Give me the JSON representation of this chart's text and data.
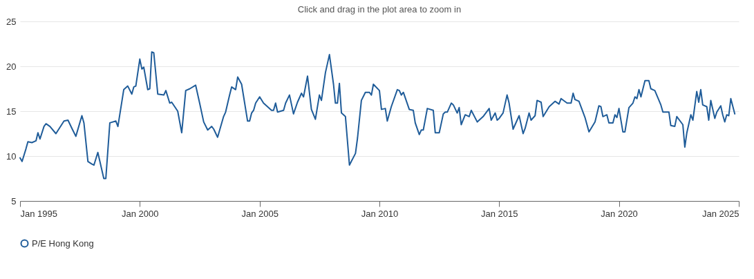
{
  "chart_data": {
    "type": "line",
    "title": "Click and drag in the plot area to zoom in",
    "x": [
      "1995-01",
      "1995-02",
      "1995-04",
      "1995-05",
      "1995-07",
      "1995-09",
      "1995-10",
      "1995-11",
      "1996-01",
      "1996-02",
      "1996-04",
      "1996-07",
      "1996-11",
      "1997-01",
      "1997-03",
      "1997-05",
      "1997-08",
      "1997-09",
      "1997-11",
      "1998-01",
      "1998-02",
      "1998-04",
      "1998-07",
      "1998-08",
      "1998-10",
      "1999-01",
      "1999-02",
      "1999-05",
      "1999-07",
      "1999-09",
      "1999-10",
      "1999-11",
      "2000-01",
      "2000-02",
      "2000-03",
      "2000-05",
      "2000-06",
      "2000-07",
      "2000-08",
      "2000-10",
      "2001-01",
      "2001-02",
      "2001-04",
      "2001-05",
      "2001-08",
      "2001-10",
      "2001-12",
      "2002-02",
      "2002-05",
      "2002-07",
      "2002-09",
      "2002-11",
      "2003-01",
      "2003-02",
      "2003-04",
      "2003-07",
      "2003-08",
      "2003-10",
      "2003-11",
      "2004-01",
      "2004-02",
      "2004-04",
      "2004-07",
      "2004-08",
      "2004-09",
      "2004-10",
      "2004-11",
      "2005-01",
      "2005-03",
      "2005-07",
      "2005-08",
      "2005-09",
      "2005-10",
      "2006-01",
      "2006-02",
      "2006-04",
      "2006-06",
      "2006-08",
      "2006-10",
      "2006-11",
      "2007-01",
      "2007-03",
      "2007-05",
      "2007-07",
      "2007-08",
      "2007-10",
      "2007-12",
      "2008-02",
      "2008-03",
      "2008-04",
      "2008-05",
      "2008-06",
      "2008-08",
      "2008-10",
      "2009-01",
      "2009-02",
      "2009-04",
      "2009-06",
      "2009-08",
      "2009-09",
      "2009-10",
      "2010-01",
      "2010-02",
      "2010-04",
      "2010-05",
      "2010-07",
      "2010-10",
      "2010-11",
      "2010-12",
      "2011-01",
      "2011-04",
      "2011-06",
      "2011-07",
      "2011-09",
      "2011-10",
      "2011-11",
      "2012-01",
      "2012-04",
      "2012-05",
      "2012-07",
      "2012-09",
      "2012-10",
      "2012-11",
      "2013-01",
      "2013-02",
      "2013-04",
      "2013-05",
      "2013-06",
      "2013-08",
      "2013-10",
      "2013-11",
      "2014-02",
      "2014-05",
      "2014-08",
      "2014-09",
      "2014-11",
      "2014-12",
      "2015-01",
      "2015-03",
      "2015-05",
      "2015-06",
      "2015-08",
      "2015-11",
      "2016-01",
      "2016-02",
      "2016-04",
      "2016-05",
      "2016-07",
      "2016-08",
      "2016-10",
      "2016-11",
      "2017-02",
      "2017-05",
      "2017-07",
      "2017-08",
      "2017-11",
      "2018-01",
      "2018-02",
      "2018-03",
      "2018-05",
      "2018-08",
      "2018-10",
      "2019-01",
      "2019-03",
      "2019-04",
      "2019-05",
      "2019-07",
      "2019-08",
      "2019-10",
      "2019-11",
      "2019-12",
      "2020-01",
      "2020-03",
      "2020-04",
      "2020-06",
      "2020-08",
      "2020-09",
      "2020-10",
      "2020-11",
      "2020-12",
      "2021-02",
      "2021-04",
      "2021-05",
      "2021-07",
      "2021-10",
      "2021-11",
      "2022-02",
      "2022-03",
      "2022-05",
      "2022-06",
      "2022-09",
      "2022-10",
      "2022-11",
      "2023-01",
      "2023-02",
      "2023-04",
      "2023-05",
      "2023-06",
      "2023-07",
      "2023-09",
      "2023-10",
      "2023-11",
      "2024-01",
      "2024-02",
      "2024-04",
      "2024-05",
      "2024-06",
      "2024-07",
      "2024-08",
      "2024-09",
      "2024-11"
    ],
    "series": [
      {
        "name": "P/E Hong Kong",
        "color": "#1f5c99",
        "values": [
          9.8,
          9.4,
          10.8,
          11.6,
          11.5,
          11.7,
          12.6,
          11.9,
          13.3,
          13.6,
          13.3,
          12.5,
          13.9,
          14.0,
          13.1,
          12.2,
          14.5,
          13.7,
          9.4,
          9.1,
          9.0,
          10.4,
          7.5,
          7.5,
          13.7,
          13.9,
          13.3,
          17.4,
          17.8,
          16.9,
          17.7,
          17.8,
          20.8,
          19.7,
          19.9,
          17.4,
          17.5,
          21.6,
          21.5,
          16.9,
          16.8,
          17.3,
          15.9,
          16.0,
          15.0,
          12.6,
          17.3,
          17.5,
          17.9,
          15.9,
          13.8,
          12.9,
          13.3,
          13.0,
          12.1,
          14.4,
          14.9,
          16.8,
          17.7,
          17.4,
          18.8,
          18.0,
          13.9,
          13.9,
          14.8,
          15.1,
          15.9,
          16.6,
          15.9,
          15.1,
          15.1,
          15.9,
          14.9,
          15.1,
          15.9,
          16.8,
          14.7,
          16.0,
          17.0,
          16.6,
          18.9,
          15.2,
          14.1,
          16.8,
          16.2,
          19.3,
          21.3,
          18.0,
          15.9,
          15.9,
          18.1,
          14.8,
          14.4,
          9.0,
          10.3,
          12.0,
          16.2,
          17.1,
          17.1,
          16.8,
          18.0,
          17.3,
          15.2,
          15.3,
          13.9,
          15.5,
          17.4,
          17.3,
          16.8,
          17.1,
          15.2,
          15.1,
          13.7,
          12.4,
          12.9,
          12.9,
          15.3,
          15.1,
          12.6,
          12.6,
          14.7,
          14.9,
          14.9,
          15.9,
          15.7,
          14.8,
          15.4,
          13.5,
          14.6,
          14.4,
          15.1,
          13.8,
          14.4,
          15.3,
          14.0,
          14.8,
          14.0,
          14.2,
          14.8,
          16.8,
          15.9,
          13.0,
          14.5,
          12.5,
          13.1,
          14.8,
          14.0,
          14.5,
          16.2,
          16.0,
          14.4,
          15.5,
          16.1,
          15.8,
          16.4,
          15.9,
          15.9,
          17.0,
          16.3,
          16.1,
          14.3,
          12.7,
          13.8,
          15.6,
          15.5,
          14.4,
          14.6,
          13.7,
          13.7,
          14.6,
          14.3,
          15.3,
          12.7,
          12.7,
          15.4,
          15.9,
          16.6,
          16.4,
          17.4,
          16.6,
          18.4,
          18.4,
          17.5,
          17.3,
          15.7,
          14.9,
          14.9,
          13.4,
          13.3,
          14.4,
          13.5,
          11.0,
          12.6,
          14.6,
          14.0,
          17.2,
          16.0,
          17.4,
          15.7,
          15.5,
          14.0,
          16.2,
          14.2,
          14.9,
          15.6,
          14.6,
          13.8,
          14.6,
          14.5,
          16.4,
          14.7
        ]
      }
    ],
    "xlim": [
      "1995-01",
      "2025-01"
    ],
    "xticks": [
      {
        "value": "1995-01",
        "label": "Jan 1995"
      },
      {
        "value": "2000-01",
        "label": "Jan 2000"
      },
      {
        "value": "2005-01",
        "label": "Jan 2005"
      },
      {
        "value": "2010-01",
        "label": "Jan 2010"
      },
      {
        "value": "2015-01",
        "label": "Jan 2015"
      },
      {
        "value": "2020-01",
        "label": "Jan 2020"
      },
      {
        "value": "2025-01",
        "label": "Jan 2025"
      }
    ],
    "ylim": [
      5,
      25
    ],
    "yticks": [
      5,
      10,
      15,
      20,
      25
    ],
    "grid": "y",
    "legend": "bottom"
  }
}
